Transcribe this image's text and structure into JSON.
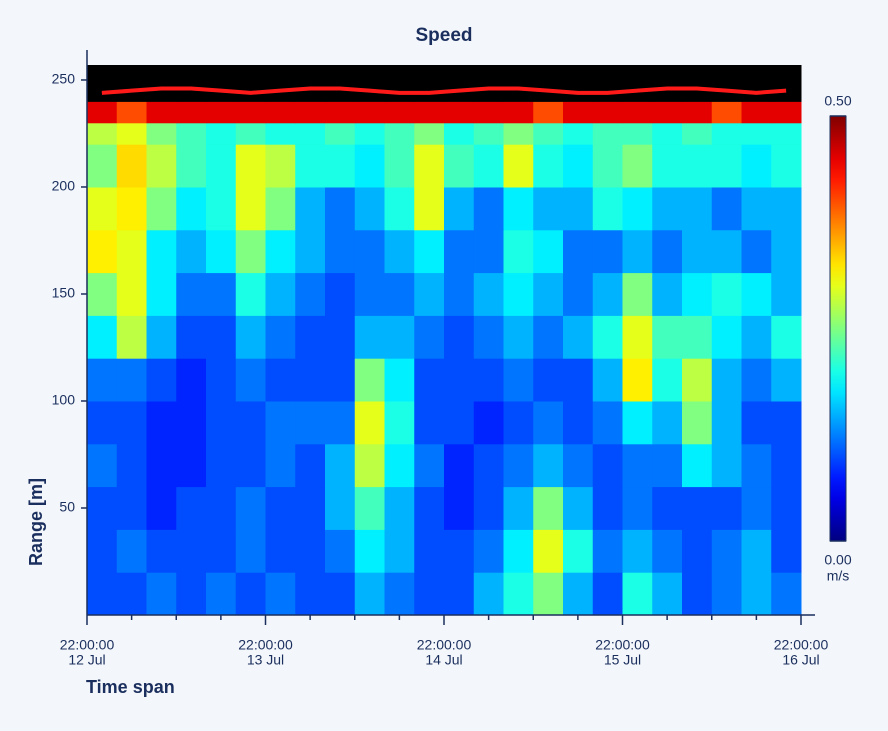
{
  "chart_data": {
    "type": "heatmap",
    "title": "Speed",
    "ylabel": "Range [m]",
    "xlabel": "Time span",
    "ylim": [
      0,
      257
    ],
    "yticks": [
      50,
      100,
      150,
      200,
      250
    ],
    "xticks": [
      {
        "time": "22:00:00",
        "date": "12 Jul"
      },
      {
        "time": "22:00:00",
        "date": "13 Jul"
      },
      {
        "time": "22:00:00",
        "date": "14 Jul"
      },
      {
        "time": "22:00:00",
        "date": "15 Jul"
      },
      {
        "time": "22:00:00",
        "date": "16 Jul"
      }
    ],
    "y_bins": [
      0,
      20,
      40,
      60,
      80,
      100,
      120,
      140,
      160,
      180,
      200,
      220,
      230,
      240,
      257
    ],
    "values": [
      [
        0.1,
        0.1,
        0.12,
        0.1,
        0.12,
        0.1,
        0.12,
        0.1,
        0.1,
        0.15,
        0.12,
        0.1,
        0.1,
        0.15,
        0.2,
        0.25,
        0.15,
        0.1,
        0.2,
        0.15,
        0.1,
        0.12,
        0.15,
        0.12
      ],
      [
        0.1,
        0.12,
        0.1,
        0.1,
        0.1,
        0.12,
        0.1,
        0.1,
        0.12,
        0.18,
        0.15,
        0.1,
        0.1,
        0.12,
        0.18,
        0.3,
        0.2,
        0.12,
        0.15,
        0.12,
        0.1,
        0.12,
        0.15,
        0.1
      ],
      [
        0.1,
        0.1,
        0.08,
        0.1,
        0.1,
        0.12,
        0.1,
        0.1,
        0.15,
        0.22,
        0.15,
        0.1,
        0.08,
        0.1,
        0.15,
        0.25,
        0.15,
        0.1,
        0.12,
        0.1,
        0.1,
        0.1,
        0.12,
        0.1
      ],
      [
        0.12,
        0.1,
        0.08,
        0.08,
        0.1,
        0.1,
        0.12,
        0.1,
        0.15,
        0.28,
        0.18,
        0.12,
        0.08,
        0.1,
        0.12,
        0.15,
        0.12,
        0.1,
        0.12,
        0.12,
        0.18,
        0.15,
        0.12,
        0.1
      ],
      [
        0.1,
        0.1,
        0.08,
        0.08,
        0.1,
        0.1,
        0.12,
        0.12,
        0.12,
        0.3,
        0.2,
        0.1,
        0.1,
        0.08,
        0.1,
        0.12,
        0.1,
        0.12,
        0.18,
        0.15,
        0.25,
        0.15,
        0.1,
        0.1
      ],
      [
        0.12,
        0.12,
        0.1,
        0.08,
        0.1,
        0.12,
        0.1,
        0.1,
        0.1,
        0.25,
        0.18,
        0.1,
        0.1,
        0.1,
        0.12,
        0.1,
        0.1,
        0.15,
        0.32,
        0.2,
        0.28,
        0.15,
        0.12,
        0.15
      ],
      [
        0.18,
        0.28,
        0.15,
        0.1,
        0.1,
        0.15,
        0.12,
        0.1,
        0.1,
        0.15,
        0.15,
        0.12,
        0.1,
        0.12,
        0.15,
        0.12,
        0.15,
        0.2,
        0.3,
        0.22,
        0.22,
        0.18,
        0.15,
        0.2
      ],
      [
        0.25,
        0.3,
        0.18,
        0.12,
        0.12,
        0.2,
        0.15,
        0.12,
        0.1,
        0.12,
        0.12,
        0.15,
        0.12,
        0.15,
        0.18,
        0.15,
        0.12,
        0.15,
        0.25,
        0.15,
        0.18,
        0.2,
        0.18,
        0.15
      ],
      [
        0.32,
        0.3,
        0.18,
        0.15,
        0.18,
        0.25,
        0.18,
        0.15,
        0.12,
        0.12,
        0.15,
        0.18,
        0.12,
        0.12,
        0.2,
        0.18,
        0.12,
        0.12,
        0.15,
        0.12,
        0.15,
        0.15,
        0.12,
        0.15
      ],
      [
        0.3,
        0.32,
        0.25,
        0.18,
        0.2,
        0.3,
        0.25,
        0.15,
        0.12,
        0.15,
        0.2,
        0.3,
        0.15,
        0.12,
        0.18,
        0.15,
        0.15,
        0.2,
        0.18,
        0.15,
        0.15,
        0.12,
        0.15,
        0.15
      ],
      [
        0.25,
        0.33,
        0.28,
        0.22,
        0.2,
        0.3,
        0.28,
        0.2,
        0.2,
        0.18,
        0.22,
        0.3,
        0.22,
        0.2,
        0.3,
        0.2,
        0.18,
        0.22,
        0.25,
        0.2,
        0.2,
        0.2,
        0.18,
        0.2
      ],
      [
        0.28,
        0.3,
        0.25,
        0.22,
        0.2,
        0.22,
        0.2,
        0.2,
        0.22,
        0.2,
        0.22,
        0.25,
        0.2,
        0.22,
        0.25,
        0.22,
        0.2,
        0.22,
        0.22,
        0.2,
        0.22,
        0.2,
        0.2,
        0.2
      ],
      [
        0.45,
        0.4,
        0.45,
        0.45,
        0.45,
        0.45,
        0.45,
        0.45,
        0.45,
        0.45,
        0.45,
        0.45,
        0.45,
        0.45,
        0.45,
        0.4,
        0.45,
        0.45,
        0.45,
        0.45,
        0.45,
        0.4,
        0.45,
        0.45
      ],
      [
        null,
        null,
        null,
        null,
        null,
        null,
        null,
        null,
        null,
        null,
        null,
        null,
        null,
        null,
        null,
        null,
        null,
        null,
        null,
        null,
        null,
        null,
        null,
        null
      ]
    ],
    "null_color": "#000000",
    "surface": {
      "color": "#ff1a1a",
      "values": [
        244,
        245,
        246,
        246,
        245,
        244,
        245,
        246,
        246,
        245,
        244,
        244,
        245,
        246,
        246,
        245,
        244,
        244,
        245,
        246,
        246,
        245,
        244,
        245
      ]
    },
    "colorbar": {
      "lim": [
        0,
        0.5
      ],
      "colormap": "jet",
      "unit": "m/s",
      "ticks": [
        {
          "value": 0.5,
          "label": "0.50"
        },
        {
          "value": 0,
          "label": "0.00"
        }
      ]
    }
  }
}
